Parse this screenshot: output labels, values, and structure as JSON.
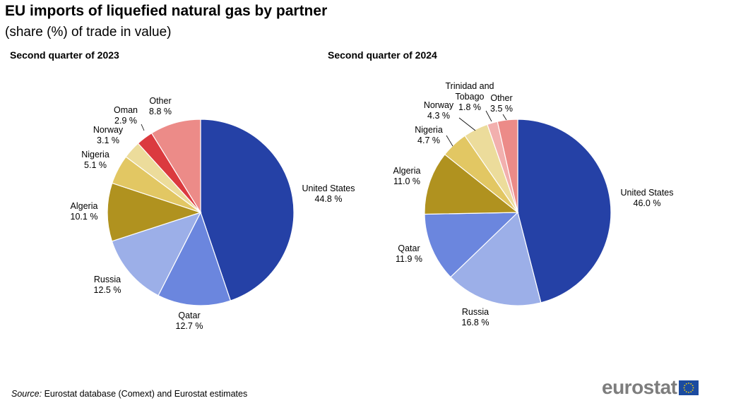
{
  "header": {
    "title": "EU imports of liquefied natural gas by partner",
    "subtitle": "(share (%) of trade in value)"
  },
  "chart_data": [
    {
      "type": "pie",
      "title": "Second quarter of 2023",
      "unit": "%",
      "slices": [
        {
          "label": "United States",
          "value": 44.8,
          "value_label": "44.8 %",
          "color": "#2541a6"
        },
        {
          "label": "Qatar",
          "value": 12.7,
          "value_label": "12.7 %",
          "color": "#6b86de"
        },
        {
          "label": "Russia",
          "value": 12.5,
          "value_label": "12.5 %",
          "color": "#9cafe8"
        },
        {
          "label": "Algeria",
          "value": 10.1,
          "value_label": "10.1 %",
          "color": "#b0921f"
        },
        {
          "label": "Nigeria",
          "value": 5.1,
          "value_label": "5.1 %",
          "color": "#e2c763"
        },
        {
          "label": "Norway",
          "value": 3.1,
          "value_label": "3.1 %",
          "color": "#ecdc9b"
        },
        {
          "label": "Oman",
          "value": 2.9,
          "value_label": "2.9 %",
          "color": "#db3a3f"
        },
        {
          "label": "Other",
          "value": 8.8,
          "value_label": "8.8 %",
          "color": "#ec8b88"
        }
      ]
    },
    {
      "type": "pie",
      "title": "Second quarter of 2024",
      "unit": "%",
      "slices": [
        {
          "label": "United States",
          "value": 46.0,
          "value_label": "46.0 %",
          "color": "#2541a6"
        },
        {
          "label": "Russia",
          "value": 16.8,
          "value_label": "16.8 %",
          "color": "#9cafe8"
        },
        {
          "label": "Qatar",
          "value": 11.9,
          "value_label": "11.9 %",
          "color": "#6b86de"
        },
        {
          "label": "Algeria",
          "value": 11.0,
          "value_label": "11.0 %",
          "color": "#b0921f"
        },
        {
          "label": "Nigeria",
          "value": 4.7,
          "value_label": "4.7 %",
          "color": "#e2c763"
        },
        {
          "label": "Norway",
          "value": 4.3,
          "value_label": "4.3 %",
          "color": "#ecdc9b"
        },
        {
          "label": "Trinidad and Tobago",
          "label_lines": [
            "Trinidad and",
            "Tobago"
          ],
          "value": 1.8,
          "value_label": "1.8 %",
          "color": "#f2b0ae"
        },
        {
          "label": "Other",
          "value": 3.5,
          "value_label": "3.5 %",
          "color": "#ec8b88"
        }
      ]
    }
  ],
  "footer": {
    "source_label": "Source:",
    "source_text": " Eurostat database (Comext) and Eurostat estimates",
    "logo_text": "eurostat",
    "flag_colors": {
      "background": "#1b4ba0",
      "stars": "#ffd700"
    }
  }
}
